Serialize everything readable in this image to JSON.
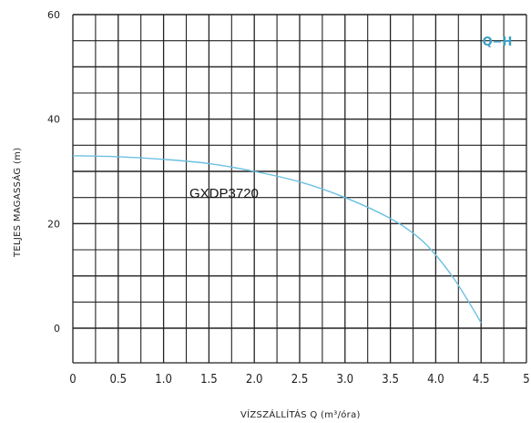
{
  "chart_data": {
    "type": "line",
    "title": "",
    "xlabel": "VÍZSZÁLLÍTÁS Q (m³/óra)",
    "ylabel": "TELJES MAGASSÁG (m)",
    "xlim": [
      0,
      5
    ],
    "ylim": [
      0,
      60
    ],
    "x_ticks": [
      "0",
      "0.5",
      "1.0",
      "1.5",
      "2.0",
      "2.5",
      "3.0",
      "3.5",
      "4.0",
      "4.5",
      "5"
    ],
    "y_ticks": [
      "0",
      "20",
      "40",
      "60"
    ],
    "grid": true,
    "legend_position": "top-right",
    "legend_text": "Q−H",
    "series_annotation": "GXDP3720",
    "line_color": "#6cc0e0",
    "legend_color": "#3a9fc8",
    "grid_color": "#222222",
    "series": [
      {
        "x": [
          0,
          0.5,
          1.0,
          1.5,
          2.0,
          2.5,
          3.0,
          3.5,
          3.8,
          4.0,
          4.2,
          4.4,
          4.5
        ],
        "y": [
          33,
          32.8,
          32.3,
          31.5,
          30,
          28,
          25,
          21,
          17.5,
          14,
          9.5,
          4,
          1
        ]
      }
    ]
  }
}
